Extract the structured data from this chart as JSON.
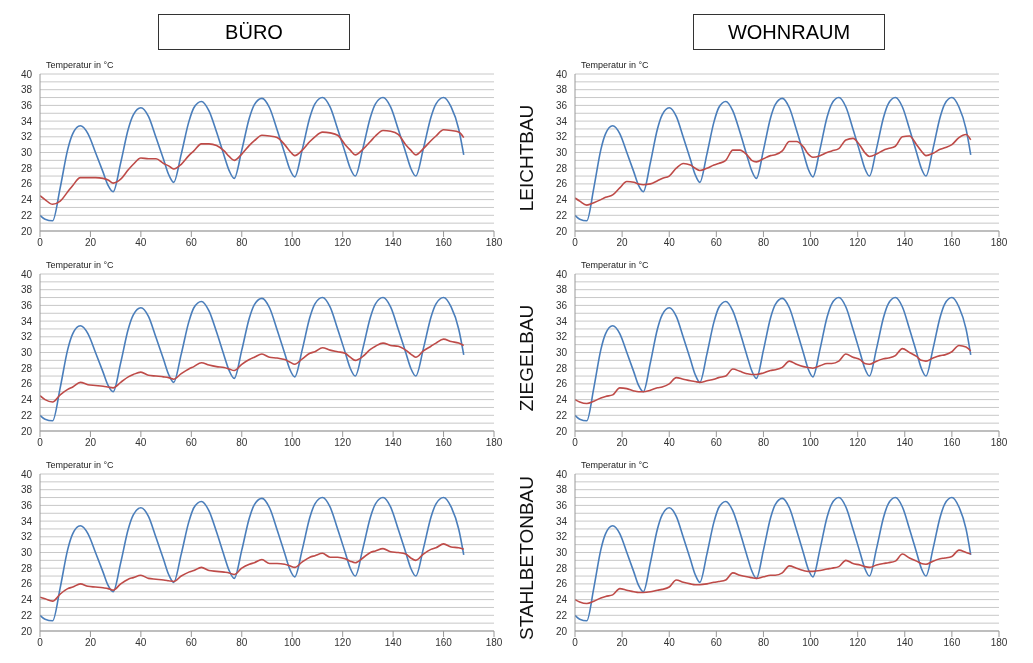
{
  "chart_data": [
    {
      "type": "line",
      "title": "BÜRO",
      "ylabel": "Temperatur in °C",
      "xlim": [
        0,
        180
      ],
      "xticks": [
        0,
        20,
        40,
        60,
        80,
        100,
        120,
        140,
        160,
        180
      ],
      "ylim": [
        20,
        40
      ],
      "yticks": [
        20,
        {
          "value": 21,
          "label": null
        },
        22,
        {
          "value": 23,
          "label": null
        },
        24,
        {
          "value": 25,
          "label": null
        },
        26,
        {
          "value": 27,
          "label": null
        },
        28,
        {
          "value": 29,
          "label": null
        },
        30,
        {
          "value": 31,
          "label": null
        },
        32,
        {
          "value": 33,
          "label": null
        },
        34,
        {
          "value": 35,
          "label": null
        },
        36,
        {
          "value": 37,
          "label": null
        },
        38,
        {
          "value": 39,
          "label": null
        },
        40
      ],
      "grid": "y",
      "legend": false,
      "x": [
        0,
        2,
        5,
        8,
        11,
        13,
        16,
        19,
        22,
        25,
        27,
        29,
        32,
        35,
        37,
        40,
        43,
        46,
        49,
        51,
        53,
        56,
        59,
        61,
        64,
        67,
        70,
        73,
        75,
        77,
        80,
        83,
        85,
        88,
        91,
        94,
        97,
        99,
        101,
        104,
        107,
        109,
        112,
        115,
        118,
        121,
        123,
        125,
        128,
        131,
        133,
        136,
        139,
        142,
        145,
        147,
        149,
        152,
        155,
        157,
        160,
        163,
        166,
        168
      ],
      "series": [
        {
          "color": "#4a7ebb",
          "values": [
            22.0,
            21.5,
            21.3,
            25.5,
            30.4,
            32.4,
            33.4,
            32.4,
            30.0,
            27.5,
            25.8,
            25.0,
            28.7,
            33.0,
            34.8,
            35.7,
            34.6,
            31.9,
            29.1,
            27.2,
            26.2,
            29.8,
            33.9,
            35.7,
            36.5,
            35.3,
            32.6,
            29.6,
            27.7,
            26.7,
            30.3,
            34.4,
            36.1,
            36.9,
            35.7,
            32.9,
            29.9,
            27.9,
            26.9,
            30.4,
            34.5,
            36.2,
            37.0,
            35.8,
            33.0,
            30.0,
            28.0,
            27.0,
            30.5,
            34.5,
            36.2,
            37.0,
            35.8,
            33.0,
            30.0,
            28.0,
            27.0,
            30.5,
            34.5,
            36.2,
            37.0,
            35.8,
            33.0,
            29.7
          ]
        },
        {
          "color": "#be4b48",
          "values": [
            24.5,
            24.0,
            23.4,
            23.8,
            25.0,
            25.8,
            26.8,
            26.8,
            26.8,
            26.7,
            26.5,
            26.1,
            26.6,
            27.8,
            28.5,
            29.3,
            29.2,
            29.2,
            28.6,
            28.3,
            27.9,
            28.5,
            29.6,
            30.2,
            31.1,
            31.1,
            30.9,
            30.2,
            29.5,
            29.0,
            29.8,
            30.9,
            31.5,
            32.2,
            32.1,
            31.9,
            31.0,
            30.2,
            29.6,
            30.3,
            31.4,
            32.0,
            32.6,
            32.5,
            32.2,
            31.0,
            30.3,
            29.7,
            30.4,
            31.4,
            32.1,
            32.8,
            32.7,
            32.3,
            31.0,
            30.3,
            29.7,
            30.5,
            31.5,
            32.1,
            32.9,
            32.8,
            32.6,
            31.9
          ]
        }
      ]
    },
    {
      "type": "line",
      "title": "WOHNRAUM",
      "ylabel": "Temperatur in °C",
      "annotations": [
        "LEICHTBAU"
      ],
      "xlim": [
        0,
        180
      ],
      "xticks": [
        0,
        20,
        40,
        60,
        80,
        100,
        120,
        140,
        160,
        180
      ],
      "ylim": [
        20,
        40
      ],
      "yticks": [
        20,
        {
          "value": 21,
          "label": null
        },
        22,
        {
          "value": 23,
          "label": null
        },
        24,
        {
          "value": 25,
          "label": null
        },
        26,
        {
          "value": 27,
          "label": null
        },
        28,
        {
          "value": 29,
          "label": null
        },
        30,
        {
          "value": 31,
          "label": null
        },
        32,
        {
          "value": 33,
          "label": null
        },
        34,
        {
          "value": 35,
          "label": null
        },
        36,
        {
          "value": 37,
          "label": null
        },
        38,
        {
          "value": 39,
          "label": null
        },
        40
      ],
      "grid": "y",
      "legend": false,
      "x": [
        0,
        2,
        5,
        8,
        11,
        13,
        16,
        19,
        22,
        25,
        27,
        29,
        32,
        35,
        37,
        40,
        43,
        46,
        49,
        51,
        53,
        56,
        59,
        61,
        64,
        67,
        70,
        73,
        75,
        77,
        80,
        83,
        85,
        88,
        91,
        94,
        97,
        99,
        101,
        104,
        107,
        109,
        112,
        115,
        118,
        121,
        123,
        125,
        128,
        131,
        133,
        136,
        139,
        142,
        145,
        147,
        149,
        152,
        155,
        157,
        160,
        163,
        166,
        168
      ],
      "series": [
        {
          "color": "#4a7ebb",
          "values": [
            22.0,
            21.5,
            21.3,
            25.5,
            30.4,
            32.4,
            33.4,
            32.4,
            30.0,
            27.5,
            25.8,
            25.0,
            28.7,
            33.0,
            34.8,
            35.7,
            34.6,
            31.9,
            29.1,
            27.2,
            26.2,
            29.8,
            33.9,
            35.7,
            36.5,
            35.3,
            32.6,
            29.6,
            27.7,
            26.7,
            30.3,
            34.4,
            36.1,
            36.9,
            35.7,
            32.9,
            29.9,
            27.9,
            26.9,
            30.4,
            34.5,
            36.2,
            37.0,
            35.8,
            33.0,
            30.0,
            28.0,
            27.0,
            30.5,
            34.5,
            36.2,
            37.0,
            35.8,
            33.0,
            30.0,
            28.0,
            27.0,
            30.5,
            34.5,
            36.2,
            37.0,
            35.8,
            33.0,
            29.7
          ]
        },
        {
          "color": "#be4b48",
          "values": [
            24.2,
            23.8,
            23.3,
            23.6,
            24.0,
            24.3,
            24.6,
            25.5,
            26.3,
            26.2,
            26.0,
            25.9,
            26.0,
            26.4,
            26.7,
            27.0,
            28.0,
            28.6,
            28.4,
            28.0,
            27.7,
            28.0,
            28.4,
            28.6,
            29.0,
            30.3,
            30.3,
            29.7,
            29.0,
            28.8,
            29.2,
            29.6,
            29.7,
            30.2,
            31.4,
            31.4,
            30.7,
            29.8,
            29.4,
            29.6,
            30.0,
            30.2,
            30.5,
            31.6,
            31.8,
            30.9,
            30.0,
            29.5,
            29.8,
            30.3,
            30.5,
            30.8,
            32.0,
            32.1,
            31.0,
            30.2,
            29.6,
            29.9,
            30.4,
            30.6,
            31.0,
            31.9,
            32.3,
            31.6
          ]
        }
      ]
    },
    {
      "type": "line",
      "ylabel": "Temperatur in °C",
      "xlim": [
        0,
        180
      ],
      "xticks": [
        0,
        20,
        40,
        60,
        80,
        100,
        120,
        140,
        160,
        180
      ],
      "ylim": [
        20,
        40
      ],
      "yticks": [
        20,
        {
          "value": 21,
          "label": null
        },
        22,
        {
          "value": 23,
          "label": null
        },
        24,
        {
          "value": 25,
          "label": null
        },
        26,
        {
          "value": 27,
          "label": null
        },
        28,
        {
          "value": 29,
          "label": null
        },
        30,
        {
          "value": 31,
          "label": null
        },
        32,
        {
          "value": 33,
          "label": null
        },
        34,
        {
          "value": 35,
          "label": null
        },
        36,
        {
          "value": 37,
          "label": null
        },
        38,
        {
          "value": 39,
          "label": null
        },
        40
      ],
      "grid": "y",
      "legend": false,
      "x": [
        0,
        2,
        5,
        8,
        11,
        13,
        16,
        19,
        22,
        25,
        27,
        29,
        32,
        35,
        37,
        40,
        43,
        46,
        49,
        51,
        53,
        56,
        59,
        61,
        64,
        67,
        70,
        73,
        75,
        77,
        80,
        83,
        85,
        88,
        91,
        94,
        97,
        99,
        101,
        104,
        107,
        109,
        112,
        115,
        118,
        121,
        123,
        125,
        128,
        131,
        133,
        136,
        139,
        142,
        145,
        147,
        149,
        152,
        155,
        157,
        160,
        163,
        166,
        168
      ],
      "series": [
        {
          "color": "#4a7ebb",
          "values": [
            22.0,
            21.5,
            21.3,
            25.5,
            30.4,
            32.4,
            33.4,
            32.4,
            30.0,
            27.5,
            25.8,
            25.0,
            28.7,
            33.0,
            34.8,
            35.7,
            34.6,
            31.9,
            29.1,
            27.2,
            26.2,
            29.8,
            33.9,
            35.7,
            36.5,
            35.3,
            32.6,
            29.6,
            27.7,
            26.7,
            30.3,
            34.4,
            36.1,
            36.9,
            35.7,
            32.9,
            29.9,
            27.9,
            26.9,
            30.4,
            34.5,
            36.2,
            37.0,
            35.8,
            33.0,
            30.0,
            28.0,
            27.0,
            30.5,
            34.5,
            36.2,
            37.0,
            35.8,
            33.0,
            30.0,
            28.0,
            27.0,
            30.5,
            34.5,
            36.2,
            37.0,
            35.8,
            33.0,
            29.7
          ]
        },
        {
          "color": "#be4b48",
          "values": [
            24.5,
            24.0,
            23.7,
            24.6,
            25.3,
            25.6,
            26.2,
            25.9,
            25.8,
            25.7,
            25.6,
            25.5,
            26.2,
            26.9,
            27.2,
            27.5,
            27.1,
            27.0,
            26.9,
            26.8,
            26.6,
            27.3,
            27.9,
            28.2,
            28.7,
            28.4,
            28.2,
            28.1,
            27.9,
            27.7,
            28.5,
            29.1,
            29.4,
            29.8,
            29.4,
            29.3,
            29.1,
            28.8,
            28.5,
            29.2,
            29.9,
            30.1,
            30.6,
            30.3,
            30.1,
            29.9,
            29.4,
            29.0,
            29.5,
            30.4,
            30.8,
            31.2,
            30.9,
            30.8,
            30.3,
            29.8,
            29.4,
            30.2,
            30.8,
            31.2,
            31.7,
            31.4,
            31.2,
            30.9
          ]
        }
      ]
    },
    {
      "type": "line",
      "ylabel": "Temperatur in °C",
      "annotations": [
        "ZIEGELBAU"
      ],
      "xlim": [
        0,
        180
      ],
      "xticks": [
        0,
        20,
        40,
        60,
        80,
        100,
        120,
        140,
        160,
        180
      ],
      "ylim": [
        20,
        40
      ],
      "yticks": [
        20,
        {
          "value": 21,
          "label": null
        },
        22,
        {
          "value": 23,
          "label": null
        },
        24,
        {
          "value": 25,
          "label": null
        },
        26,
        {
          "value": 27,
          "label": null
        },
        28,
        {
          "value": 29,
          "label": null
        },
        30,
        {
          "value": 31,
          "label": null
        },
        32,
        {
          "value": 33,
          "label": null
        },
        34,
        {
          "value": 35,
          "label": null
        },
        36,
        {
          "value": 37,
          "label": null
        },
        38,
        {
          "value": 39,
          "label": null
        },
        40
      ],
      "grid": "y",
      "legend": false,
      "x": [
        0,
        2,
        5,
        8,
        11,
        13,
        16,
        19,
        22,
        25,
        27,
        29,
        32,
        35,
        37,
        40,
        43,
        46,
        49,
        51,
        53,
        56,
        59,
        61,
        64,
        67,
        70,
        73,
        75,
        77,
        80,
        83,
        85,
        88,
        91,
        94,
        97,
        99,
        101,
        104,
        107,
        109,
        112,
        115,
        118,
        121,
        123,
        125,
        128,
        131,
        133,
        136,
        139,
        142,
        145,
        147,
        149,
        152,
        155,
        157,
        160,
        163,
        166,
        168
      ],
      "series": [
        {
          "color": "#4a7ebb",
          "values": [
            22.0,
            21.5,
            21.3,
            25.5,
            30.4,
            32.4,
            33.4,
            32.4,
            30.0,
            27.5,
            25.8,
            25.0,
            28.7,
            33.0,
            34.8,
            35.7,
            34.6,
            31.9,
            29.1,
            27.2,
            26.2,
            29.8,
            33.9,
            35.7,
            36.5,
            35.3,
            32.6,
            29.6,
            27.7,
            26.7,
            30.3,
            34.4,
            36.1,
            36.9,
            35.7,
            32.9,
            29.9,
            27.9,
            26.9,
            30.4,
            34.5,
            36.2,
            37.0,
            35.8,
            33.0,
            30.0,
            28.0,
            27.0,
            30.5,
            34.5,
            36.2,
            37.0,
            35.8,
            33.0,
            30.0,
            28.0,
            27.0,
            30.5,
            34.5,
            36.2,
            37.0,
            35.8,
            33.0,
            29.7
          ]
        },
        {
          "color": "#be4b48",
          "values": [
            24.0,
            23.7,
            23.5,
            23.8,
            24.2,
            24.4,
            24.6,
            25.5,
            25.4,
            25.1,
            25.0,
            25.0,
            25.2,
            25.5,
            25.6,
            26.0,
            26.8,
            26.6,
            26.4,
            26.3,
            26.2,
            26.4,
            26.6,
            26.8,
            27.0,
            27.9,
            27.6,
            27.3,
            27.2,
            27.2,
            27.4,
            27.7,
            27.8,
            28.1,
            28.9,
            28.5,
            28.2,
            28.1,
            28.0,
            28.3,
            28.6,
            28.6,
            28.9,
            29.8,
            29.4,
            29.1,
            28.6,
            28.5,
            28.9,
            29.2,
            29.3,
            29.6,
            30.5,
            30.0,
            29.5,
            29.0,
            28.9,
            29.3,
            29.6,
            29.7,
            30.1,
            30.9,
            30.7,
            30.2
          ]
        }
      ]
    },
    {
      "type": "line",
      "ylabel": "Temperatur in °C",
      "xlim": [
        0,
        180
      ],
      "xticks": [
        0,
        20,
        40,
        60,
        80,
        100,
        120,
        140,
        160,
        180
      ],
      "ylim": [
        20,
        40
      ],
      "yticks": [
        20,
        {
          "value": 21,
          "label": null
        },
        22,
        {
          "value": 23,
          "label": null
        },
        24,
        {
          "value": 25,
          "label": null
        },
        26,
        {
          "value": 27,
          "label": null
        },
        28,
        {
          "value": 29,
          "label": null
        },
        30,
        {
          "value": 31,
          "label": null
        },
        32,
        {
          "value": 33,
          "label": null
        },
        34,
        {
          "value": 35,
          "label": null
        },
        36,
        {
          "value": 37,
          "label": null
        },
        38,
        {
          "value": 39,
          "label": null
        },
        40
      ],
      "grid": "y",
      "legend": false,
      "x": [
        0,
        2,
        5,
        8,
        11,
        13,
        16,
        19,
        22,
        25,
        27,
        29,
        32,
        35,
        37,
        40,
        43,
        46,
        49,
        51,
        53,
        56,
        59,
        61,
        64,
        67,
        70,
        73,
        75,
        77,
        80,
        83,
        85,
        88,
        91,
        94,
        97,
        99,
        101,
        104,
        107,
        109,
        112,
        115,
        118,
        121,
        123,
        125,
        128,
        131,
        133,
        136,
        139,
        142,
        145,
        147,
        149,
        152,
        155,
        157,
        160,
        163,
        166,
        168
      ],
      "series": [
        {
          "color": "#4a7ebb",
          "values": [
            22.0,
            21.5,
            21.3,
            25.5,
            30.4,
            32.4,
            33.4,
            32.4,
            30.0,
            27.5,
            25.8,
            25.0,
            28.7,
            33.0,
            34.8,
            35.7,
            34.6,
            31.9,
            29.1,
            27.2,
            26.2,
            29.8,
            33.9,
            35.7,
            36.5,
            35.3,
            32.6,
            29.6,
            27.7,
            26.7,
            30.3,
            34.4,
            36.1,
            36.9,
            35.7,
            32.9,
            29.9,
            27.9,
            26.9,
            30.4,
            34.5,
            36.2,
            37.0,
            35.8,
            33.0,
            30.0,
            28.0,
            27.0,
            30.5,
            34.5,
            36.2,
            37.0,
            35.8,
            33.0,
            30.0,
            28.0,
            27.0,
            30.5,
            34.5,
            36.2,
            37.0,
            35.8,
            33.0,
            29.7
          ]
        },
        {
          "color": "#be4b48",
          "values": [
            24.3,
            24.1,
            23.8,
            24.7,
            25.4,
            25.6,
            26.0,
            25.7,
            25.6,
            25.5,
            25.4,
            25.2,
            26.0,
            26.6,
            26.8,
            27.1,
            26.7,
            26.6,
            26.5,
            26.4,
            26.3,
            27.0,
            27.5,
            27.7,
            28.1,
            27.7,
            27.6,
            27.5,
            27.4,
            27.2,
            28.0,
            28.5,
            28.7,
            29.1,
            28.6,
            28.6,
            28.5,
            28.3,
            28.1,
            28.8,
            29.4,
            29.6,
            29.9,
            29.4,
            29.4,
            29.2,
            28.9,
            28.7,
            29.3,
            30.0,
            30.2,
            30.5,
            30.1,
            30.0,
            29.8,
            29.3,
            29.0,
            29.8,
            30.4,
            30.6,
            31.1,
            30.7,
            30.6,
            30.4
          ]
        }
      ]
    },
    {
      "type": "line",
      "ylabel": "Temperatur in °C",
      "annotations": [
        "STAHLBETONBAU"
      ],
      "xlim": [
        0,
        180
      ],
      "xticks": [
        0,
        20,
        40,
        60,
        80,
        100,
        120,
        140,
        160,
        180
      ],
      "ylim": [
        20,
        40
      ],
      "yticks": [
        20,
        {
          "value": 21,
          "label": null
        },
        22,
        {
          "value": 23,
          "label": null
        },
        24,
        {
          "value": 25,
          "label": null
        },
        26,
        {
          "value": 27,
          "label": null
        },
        28,
        {
          "value": 29,
          "label": null
        },
        30,
        {
          "value": 31,
          "label": null
        },
        32,
        {
          "value": 33,
          "label": null
        },
        34,
        {
          "value": 35,
          "label": null
        },
        36,
        {
          "value": 37,
          "label": null
        },
        38,
        {
          "value": 39,
          "label": null
        },
        40
      ],
      "grid": "y",
      "legend": false,
      "x": [
        0,
        2,
        5,
        8,
        11,
        13,
        16,
        19,
        22,
        25,
        27,
        29,
        32,
        35,
        37,
        40,
        43,
        46,
        49,
        51,
        53,
        56,
        59,
        61,
        64,
        67,
        70,
        73,
        75,
        77,
        80,
        83,
        85,
        88,
        91,
        94,
        97,
        99,
        101,
        104,
        107,
        109,
        112,
        115,
        118,
        121,
        123,
        125,
        128,
        131,
        133,
        136,
        139,
        142,
        145,
        147,
        149,
        152,
        155,
        157,
        160,
        163,
        166,
        168
      ],
      "series": [
        {
          "color": "#4a7ebb",
          "values": [
            22.0,
            21.5,
            21.3,
            25.5,
            30.4,
            32.4,
            33.4,
            32.4,
            30.0,
            27.5,
            25.8,
            25.0,
            28.7,
            33.0,
            34.8,
            35.7,
            34.6,
            31.9,
            29.1,
            27.2,
            26.2,
            29.8,
            33.9,
            35.7,
            36.5,
            35.3,
            32.6,
            29.6,
            27.7,
            26.7,
            30.3,
            34.4,
            36.1,
            36.9,
            35.7,
            32.9,
            29.9,
            27.9,
            26.9,
            30.4,
            34.5,
            36.2,
            37.0,
            35.8,
            33.0,
            30.0,
            28.0,
            27.0,
            30.5,
            34.5,
            36.2,
            37.0,
            35.8,
            33.0,
            30.0,
            28.0,
            27.0,
            30.5,
            34.5,
            36.2,
            37.0,
            35.8,
            33.0,
            29.7
          ]
        },
        {
          "color": "#be4b48",
          "values": [
            24.0,
            23.7,
            23.5,
            23.8,
            24.2,
            24.4,
            24.6,
            25.4,
            25.2,
            25.0,
            24.9,
            24.9,
            25.0,
            25.2,
            25.3,
            25.6,
            26.5,
            26.2,
            26.0,
            25.9,
            25.9,
            26.0,
            26.2,
            26.3,
            26.5,
            27.4,
            27.1,
            26.9,
            26.8,
            26.7,
            26.9,
            27.1,
            27.1,
            27.4,
            28.3,
            28.0,
            27.7,
            27.6,
            27.6,
            27.7,
            27.9,
            28.0,
            28.2,
            29.0,
            28.6,
            28.4,
            28.2,
            28.1,
            28.4,
            28.6,
            28.7,
            28.9,
            29.8,
            29.3,
            28.9,
            28.6,
            28.5,
            28.9,
            29.2,
            29.3,
            29.5,
            30.3,
            30.0,
            29.8
          ]
        }
      ]
    }
  ]
}
